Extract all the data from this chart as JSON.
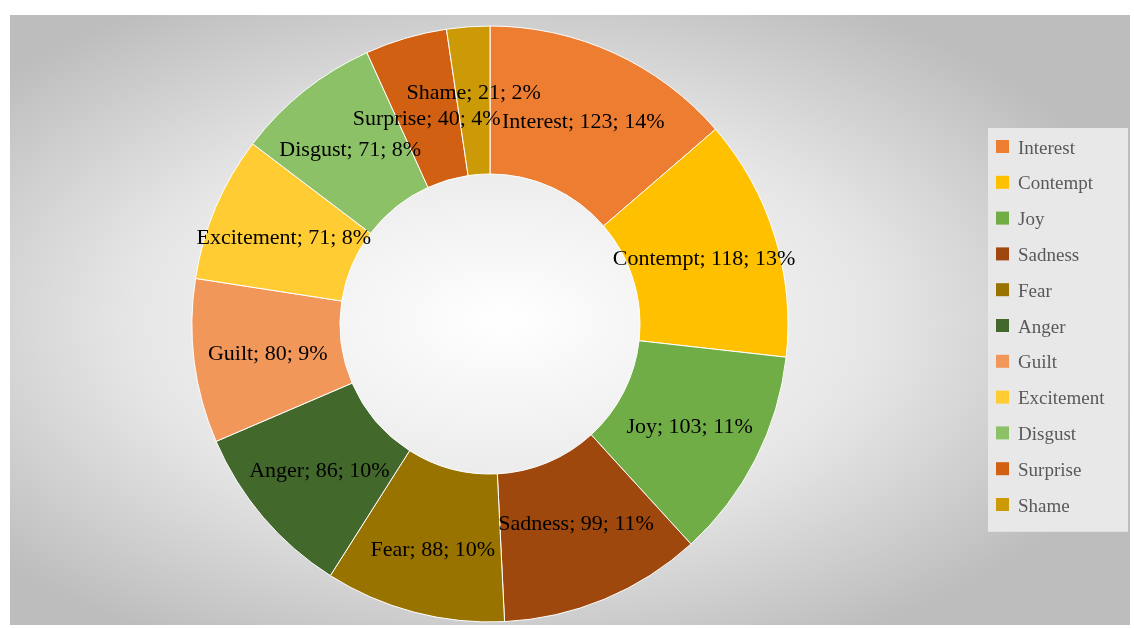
{
  "chart_data": {
    "type": "donut",
    "categories": [
      "Interest",
      "Contempt",
      "Joy",
      "Sadness",
      "Fear",
      "Anger",
      "Guilt",
      "Excitement",
      "Disgust",
      "Surprise",
      "Shame"
    ],
    "values": [
      123,
      118,
      103,
      99,
      88,
      86,
      80,
      71,
      71,
      40,
      21
    ],
    "value_labels": [
      "Interest; 123; 14%",
      "Contempt; 118; 13%",
      "Joy; 103; 11%",
      "Sadness; 99; 11%",
      "Fear; 88; 10%",
      "Anger; 86; 10%",
      "Guilt; 80; 9%",
      "Excitement; 71; 8%",
      "Disgust; 71; 8%",
      "Surprise; 40; 4%",
      "Shame; 21; 2%"
    ],
    "colors": [
      "#ed7d31",
      "#ffc000",
      "#70ad47",
      "#9e480e",
      "#997300",
      "#43682b",
      "#f1975a",
      "#ffcd33",
      "#8cc168",
      "#d26012",
      "#cc9a06"
    ],
    "legend": "right"
  }
}
